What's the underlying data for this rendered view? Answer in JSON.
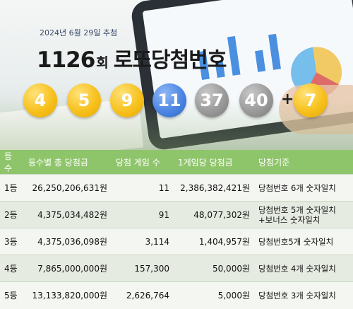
{
  "header": {
    "date": "2024년 6월 29일 추첨",
    "round_number": "1126",
    "round_suffix": "회",
    "title_suffix": "로또당첨번호"
  },
  "numbers": {
    "main": [
      "4",
      "5",
      "9",
      "11",
      "37",
      "40"
    ],
    "plus_sign": "+",
    "bonus": "7"
  },
  "table": {
    "headers": [
      "등수",
      "등수별 총 당첨금",
      "당첨 게임 수",
      "1게임당 당첨금",
      "당첨기준"
    ],
    "rows": [
      {
        "rank": "1등",
        "total": "26,250,206,631원",
        "games": "11",
        "per_game": "2,386,382,421원",
        "criteria": "당첨번호 6개 숫자일치"
      },
      {
        "rank": "2등",
        "total": "4,375,034,482원",
        "games": "91",
        "per_game": "48,077,302원",
        "criteria": "당첨번호 5개 숫자일치 +보너스 숫자일치"
      },
      {
        "rank": "3등",
        "total": "4,375,036,098원",
        "games": "3,114",
        "per_game": "1,404,957원",
        "criteria": "당첨번호5개 숫자일치"
      },
      {
        "rank": "4등",
        "total": "7,865,000,000원",
        "games": "157,300",
        "per_game": "50,000원",
        "criteria": "당첨번호 4개 숫자일치"
      },
      {
        "rank": "5등",
        "total": "13,133,820,000원",
        "games": "2,626,764",
        "per_game": "5,000원",
        "criteria": "당첨번호 3개 숫자일치"
      }
    ]
  },
  "colors": {
    "ball_yellow": "#f7c11d",
    "ball_blue": "#4c86e2",
    "ball_gray": "#9a9a9a",
    "header_green": "#8fc56a"
  }
}
